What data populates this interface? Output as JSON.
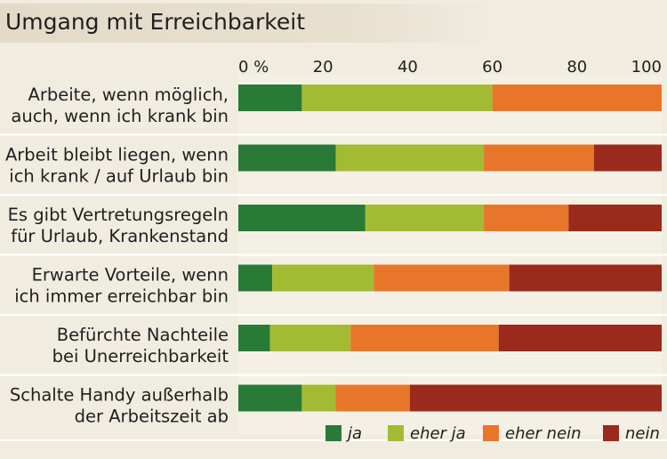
{
  "chart_data": {
    "type": "bar",
    "orientation": "horizontal",
    "stacked": true,
    "title": "Umgang mit Erreichbarkeit",
    "xlim": [
      0,
      100
    ],
    "x_ticks": [
      "0 %",
      "20",
      "40",
      "60",
      "80",
      "100"
    ],
    "categories": [
      [
        "Arbeite, wenn möglich,",
        "auch, wenn ich krank bin"
      ],
      [
        "Arbeit bleibt liegen, wenn",
        "ich krank / auf Urlaub bin"
      ],
      [
        "Es gibt Vertretungsregeln",
        "für Urlaub, Krankenstand"
      ],
      [
        "Erwarte Vorteile, wenn",
        "ich immer erreichbar bin"
      ],
      [
        "Befürchte Nachteile",
        "bei Unerreichbarkeit"
      ],
      [
        "Schalte Handy außerhalb",
        "der Arbeitszeit ab"
      ]
    ],
    "series": [
      {
        "name": "ja",
        "color": "#2a7a37",
        "values": [
          15,
          23,
          30,
          8,
          7.5,
          15
        ]
      },
      {
        "name": "eher ja",
        "color": "#a3bb33",
        "values": [
          45,
          35,
          28,
          24,
          19,
          8
        ]
      },
      {
        "name": "eher nein",
        "color": "#e8762a",
        "values": [
          40,
          26,
          20,
          32,
          35,
          17.5
        ]
      },
      {
        "name": "nein",
        "color": "#9a2a1c",
        "values": [
          0,
          16,
          22,
          36,
          38.5,
          59.5
        ]
      }
    ],
    "legend_position": "bottom-right",
    "grid": false
  }
}
